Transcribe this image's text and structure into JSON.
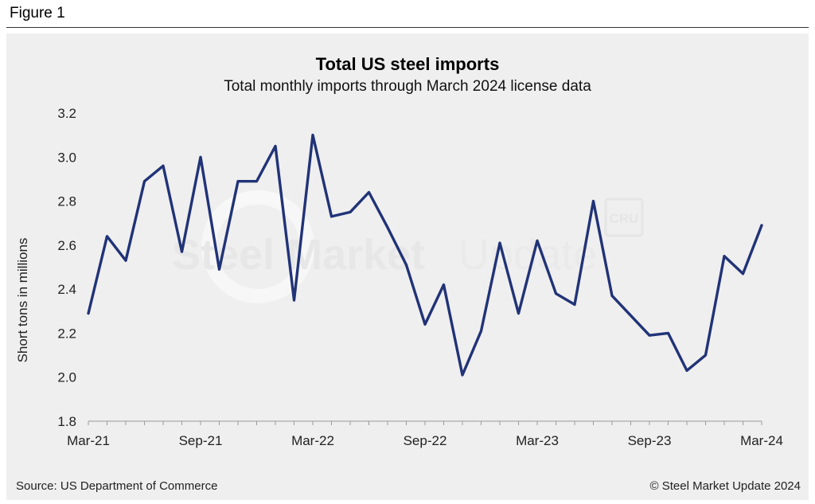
{
  "figure_label": "Figure 1",
  "source": "Source: US Department of Commerce",
  "copyright": "© Steel Market Update 2024",
  "watermark": {
    "text_bold": "Steel Market",
    "text_light": "Update",
    "badge": "CRU"
  },
  "colors": {
    "line": "#213377",
    "panel": "#efefef"
  },
  "chart_data": {
    "type": "line",
    "title": "Total US steel imports",
    "subtitle": "Total monthly imports through March 2024 license data",
    "xlabel": "",
    "ylabel": "Short tons in millions",
    "ylim": [
      1.8,
      3.2
    ],
    "yticks": [
      "3.2",
      "3.0",
      "2.8",
      "2.6",
      "2.4",
      "2.2",
      "2.0",
      "1.8"
    ],
    "ytick_values": [
      3.2,
      3.0,
      2.8,
      2.6,
      2.4,
      2.2,
      2.0,
      1.8
    ],
    "xticks": [
      {
        "label": "Mar-21",
        "index": 0
      },
      {
        "label": "Sep-21",
        "index": 6
      },
      {
        "label": "Mar-22",
        "index": 12
      },
      {
        "label": "Sep-22",
        "index": 18
      },
      {
        "label": "Mar-23",
        "index": 24
      },
      {
        "label": "Sep-23",
        "index": 30
      },
      {
        "label": "Mar-24",
        "index": 36
      }
    ],
    "grid": false,
    "series": [
      {
        "name": "Total US steel imports",
        "values": [
          2.29,
          2.64,
          2.53,
          2.89,
          2.96,
          2.57,
          3.0,
          2.49,
          2.89,
          2.89,
          3.05,
          2.35,
          3.1,
          2.73,
          2.75,
          2.84,
          2.68,
          2.51,
          2.24,
          2.42,
          2.01,
          2.21,
          2.61,
          2.29,
          2.62,
          2.38,
          2.33,
          2.8,
          2.37,
          2.28,
          2.19,
          2.2,
          2.03,
          2.1,
          2.55,
          2.47,
          2.69
        ]
      }
    ]
  }
}
